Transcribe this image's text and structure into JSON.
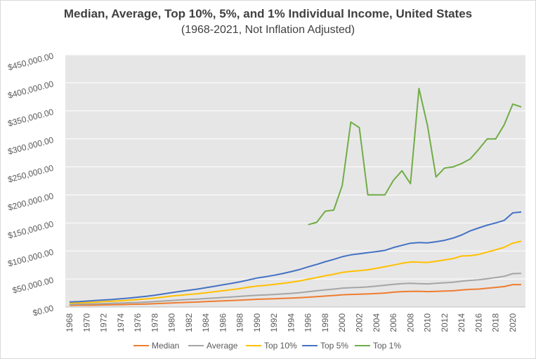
{
  "chart_data": {
    "type": "line",
    "title": "Median, Average, Top 10%, 5%, and 1% Individual Income, United States",
    "subtitle": "(1968-2021, Not Inflation Adjusted)",
    "xlabel": "",
    "ylabel": "",
    "ylim": [
      0,
      450000
    ],
    "y_ticks": [
      0,
      50000,
      100000,
      150000,
      200000,
      250000,
      300000,
      350000,
      400000,
      450000
    ],
    "y_tick_labels": [
      "$0.00",
      "$50,000.00",
      "$100,000.00",
      "$150,000.00",
      "$200,000.00",
      "$250,000.00",
      "$300,000.00",
      "$350,000.00",
      "$400,000.00",
      "$450,000.00"
    ],
    "x_start": 1968,
    "x_end": 2021,
    "x_tick_labels": [
      "1968",
      "1970",
      "1972",
      "1974",
      "1976",
      "1978",
      "1980",
      "1982",
      "1984",
      "1986",
      "1988",
      "1990",
      "1992",
      "1994",
      "1996",
      "1998",
      "2000",
      "2002",
      "2004",
      "2006",
      "2008",
      "2010",
      "2012",
      "2014",
      "2016",
      "2018",
      "2020"
    ],
    "grid": true,
    "legend_position": "bottom",
    "series": [
      {
        "name": "Median",
        "color": "#ed7d31",
        "x": [
          1968,
          1969,
          1970,
          1971,
          1972,
          1973,
          1974,
          1975,
          1976,
          1977,
          1978,
          1979,
          1980,
          1981,
          1982,
          1983,
          1984,
          1985,
          1986,
          1987,
          1988,
          1989,
          1990,
          1991,
          1992,
          1993,
          1994,
          1995,
          1996,
          1997,
          1998,
          1999,
          2000,
          2001,
          2002,
          2003,
          2004,
          2005,
          2006,
          2007,
          2008,
          2009,
          2010,
          2011,
          2012,
          2013,
          2014,
          2015,
          2016,
          2017,
          2018,
          2019,
          2020,
          2021
        ],
        "values": [
          3000,
          3200,
          3300,
          3500,
          3800,
          4100,
          4300,
          4600,
          5000,
          5400,
          6000,
          6600,
          7300,
          7900,
          8400,
          8900,
          9700,
          10300,
          10900,
          11500,
          12300,
          13000,
          13800,
          14300,
          14800,
          15300,
          16000,
          16700,
          17500,
          18400,
          19500,
          20500,
          21800,
          22400,
          22800,
          23300,
          24100,
          25000,
          26400,
          27400,
          28000,
          28100,
          27500,
          28000,
          28500,
          29000,
          30500,
          31500,
          32000,
          33500,
          35000,
          36500,
          40000,
          40000
        ]
      },
      {
        "name": "Average",
        "color": "#a5a5a5",
        "x": [
          1968,
          1969,
          1970,
          1971,
          1972,
          1973,
          1974,
          1975,
          1976,
          1977,
          1978,
          1979,
          1980,
          1981,
          1982,
          1983,
          1984,
          1985,
          1986,
          1987,
          1988,
          1989,
          1990,
          1991,
          1992,
          1993,
          1994,
          1995,
          1996,
          1997,
          1998,
          1999,
          2000,
          2001,
          2002,
          2003,
          2004,
          2005,
          2006,
          2007,
          2008,
          2009,
          2010,
          2011,
          2012,
          2013,
          2014,
          2015,
          2016,
          2017,
          2018,
          2019,
          2020,
          2021
        ],
        "values": [
          4700,
          5000,
          5300,
          5600,
          6000,
          6500,
          7000,
          7600,
          8200,
          8800,
          9700,
          10700,
          11700,
          12700,
          13500,
          14200,
          15200,
          16100,
          17000,
          17900,
          18900,
          20000,
          21000,
          21600,
          22400,
          23300,
          24300,
          25600,
          27300,
          28900,
          30600,
          32000,
          33700,
          34500,
          35000,
          35800,
          37200,
          38800,
          40300,
          41800,
          42200,
          41800,
          41300,
          42300,
          43300,
          44300,
          46000,
          47500,
          48500,
          50500,
          52500,
          54800,
          59500,
          60000
        ]
      },
      {
        "name": "Top 10%",
        "color": "#ffc000",
        "x": [
          1968,
          1969,
          1970,
          1971,
          1972,
          1973,
          1974,
          1975,
          1976,
          1977,
          1978,
          1979,
          1980,
          1981,
          1982,
          1983,
          1984,
          1985,
          1986,
          1987,
          1988,
          1989,
          1990,
          1991,
          1992,
          1993,
          1994,
          1995,
          1996,
          1997,
          1998,
          1999,
          2000,
          2001,
          2002,
          2003,
          2004,
          2005,
          2006,
          2007,
          2008,
          2009,
          2010,
          2011,
          2012,
          2013,
          2014,
          2015,
          2016,
          2017,
          2018,
          2019,
          2020,
          2021
        ],
        "values": [
          7000,
          7500,
          8000,
          8700,
          9500,
          10300,
          11200,
          12200,
          13300,
          14500,
          16000,
          17700,
          19500,
          21000,
          22400,
          23700,
          25500,
          27200,
          29000,
          30800,
          33000,
          35300,
          37500,
          38600,
          40300,
          42100,
          44200,
          46500,
          49600,
          52500,
          55800,
          58400,
          61800,
          63500,
          64800,
          66400,
          69100,
          72000,
          74800,
          78000,
          80400,
          80100,
          79500,
          81600,
          84000,
          86500,
          91000,
          91500,
          93700,
          98000,
          102000,
          106500,
          114000,
          117500
        ]
      },
      {
        "name": "Top 5%",
        "color": "#4472c4",
        "x": [
          1968,
          1969,
          1970,
          1971,
          1972,
          1973,
          1974,
          1975,
          1976,
          1977,
          1978,
          1979,
          1980,
          1981,
          1982,
          1983,
          1984,
          1985,
          1986,
          1987,
          1988,
          1989,
          1990,
          1991,
          1992,
          1993,
          1994,
          1995,
          1996,
          1997,
          1998,
          1999,
          2000,
          2001,
          2002,
          2003,
          2004,
          2005,
          2006,
          2007,
          2008,
          2009,
          2010,
          2011,
          2012,
          2013,
          2014,
          2015,
          2016,
          2017,
          2018,
          2019,
          2020,
          2021
        ],
        "values": [
          9000,
          9500,
          10500,
          11500,
          12500,
          13500,
          14700,
          16000,
          17500,
          19200,
          21000,
          23300,
          25700,
          28000,
          30000,
          32000,
          34500,
          37000,
          39600,
          42100,
          45000,
          48300,
          51800,
          54000,
          56700,
          59700,
          63200,
          66900,
          71700,
          75900,
          80800,
          85000,
          89700,
          93000,
          95000,
          97000,
          98900,
          101000,
          106000,
          110000,
          113800,
          115000,
          114500,
          116500,
          119000,
          123000,
          128500,
          135800,
          141000,
          146000,
          150000,
          154500,
          168000,
          169500
        ]
      },
      {
        "name": "Top 1%",
        "color": "#70ad47",
        "x": [
          1996,
          1997,
          1998,
          1999,
          2000,
          2001,
          2002,
          2003,
          2004,
          2005,
          2006,
          2007,
          2008,
          2009,
          2010,
          2011,
          2012,
          2013,
          2014,
          2015,
          2016,
          2017,
          2018,
          2019,
          2020,
          2021
        ],
        "values": [
          147000,
          151000,
          171000,
          173000,
          217000,
          330000,
          320000,
          200000,
          200000,
          200000,
          226000,
          243000,
          220000,
          390000,
          324000,
          232000,
          248000,
          250000,
          256000,
          264000,
          281000,
          300000,
          300000,
          325000,
          362000,
          357000
        ]
      }
    ]
  }
}
